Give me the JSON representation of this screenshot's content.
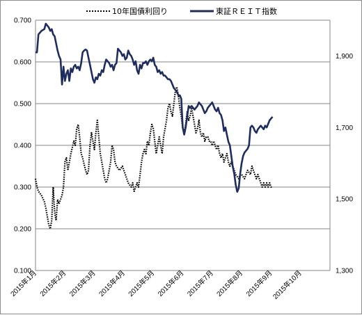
{
  "chart_data": {
    "type": "line",
    "title": "",
    "legend": {
      "placement": "top",
      "entries": [
        "10年国債利回り",
        "東証ＲＥＩＴ指数"
      ]
    },
    "y_left": {
      "range": [
        0.1,
        0.7
      ],
      "ticks": [
        "0.700",
        "0.600",
        "0.500",
        "0.400",
        "0.300",
        "0.200",
        "0.100"
      ]
    },
    "y_right": {
      "range": [
        1300,
        2000
      ],
      "ticks": [
        "1,900",
        "1,700",
        "1,500",
        "1,300"
      ]
    },
    "x_axis": {
      "ticks": [
        "2015年1月",
        "2015年2月",
        "2015年3月",
        "2015年4月",
        "2015年5月",
        "2015年6月",
        "2015年7月",
        "2015年8月",
        "2015年9月",
        "2015年10月"
      ],
      "range": [
        0,
        10
      ]
    },
    "gridlines": "horizontal",
    "series": [
      {
        "name": "10年国債利回り",
        "axis": "left",
        "style": "dotted",
        "color": "#000000",
        "points": [
          [
            0.0,
            0.32
          ],
          [
            0.05,
            0.3
          ],
          [
            0.1,
            0.29
          ],
          [
            0.2,
            0.28
          ],
          [
            0.3,
            0.265
          ],
          [
            0.35,
            0.25
          ],
          [
            0.4,
            0.23
          ],
          [
            0.45,
            0.21
          ],
          [
            0.5,
            0.2
          ],
          [
            0.55,
            0.22
          ],
          [
            0.6,
            0.3
          ],
          [
            0.65,
            0.24
          ],
          [
            0.7,
            0.22
          ],
          [
            0.75,
            0.27
          ],
          [
            0.8,
            0.26
          ],
          [
            0.9,
            0.28
          ],
          [
            0.95,
            0.3
          ],
          [
            1.0,
            0.36
          ],
          [
            1.05,
            0.37
          ],
          [
            1.1,
            0.34
          ],
          [
            1.2,
            0.38
          ],
          [
            1.3,
            0.41
          ],
          [
            1.35,
            0.4
          ],
          [
            1.4,
            0.44
          ],
          [
            1.45,
            0.45
          ],
          [
            1.5,
            0.42
          ],
          [
            1.55,
            0.38
          ],
          [
            1.6,
            0.37
          ],
          [
            1.7,
            0.34
          ],
          [
            1.75,
            0.33
          ],
          [
            1.8,
            0.34
          ],
          [
            1.85,
            0.4
          ],
          [
            1.9,
            0.43
          ],
          [
            1.95,
            0.41
          ],
          [
            2.0,
            0.39
          ],
          [
            2.05,
            0.43
          ],
          [
            2.1,
            0.46
          ],
          [
            2.15,
            0.42
          ],
          [
            2.2,
            0.38
          ],
          [
            2.25,
            0.36
          ],
          [
            2.3,
            0.34
          ],
          [
            2.35,
            0.32
          ],
          [
            2.4,
            0.31
          ],
          [
            2.45,
            0.32
          ],
          [
            2.5,
            0.34
          ],
          [
            2.55,
            0.36
          ],
          [
            2.6,
            0.4
          ],
          [
            2.65,
            0.39
          ],
          [
            2.7,
            0.36
          ],
          [
            2.75,
            0.35
          ],
          [
            2.85,
            0.34
          ],
          [
            2.95,
            0.35
          ],
          [
            3.05,
            0.33
          ],
          [
            3.15,
            0.31
          ],
          [
            3.25,
            0.3
          ],
          [
            3.3,
            0.31
          ],
          [
            3.35,
            0.29
          ],
          [
            3.4,
            0.3
          ],
          [
            3.45,
            0.31
          ],
          [
            3.5,
            0.3
          ],
          [
            3.55,
            0.33
          ],
          [
            3.6,
            0.36
          ],
          [
            3.65,
            0.38
          ],
          [
            3.7,
            0.39
          ],
          [
            3.75,
            0.38
          ],
          [
            3.8,
            0.41
          ],
          [
            3.85,
            0.4
          ],
          [
            3.9,
            0.43
          ],
          [
            3.95,
            0.45
          ],
          [
            4.0,
            0.44
          ],
          [
            4.05,
            0.41
          ],
          [
            4.1,
            0.38
          ],
          [
            4.15,
            0.4
          ],
          [
            4.2,
            0.42
          ],
          [
            4.25,
            0.4
          ],
          [
            4.3,
            0.38
          ],
          [
            4.35,
            0.42
          ],
          [
            4.4,
            0.44
          ],
          [
            4.45,
            0.46
          ],
          [
            4.5,
            0.49
          ],
          [
            4.55,
            0.5
          ],
          [
            4.6,
            0.48
          ],
          [
            4.65,
            0.47
          ],
          [
            4.7,
            0.5
          ],
          [
            4.75,
            0.53
          ],
          [
            4.8,
            0.54
          ],
          [
            4.85,
            0.52
          ],
          [
            4.9,
            0.49
          ],
          [
            4.95,
            0.47
          ],
          [
            5.0,
            0.44
          ],
          [
            5.05,
            0.43
          ],
          [
            5.1,
            0.45
          ],
          [
            5.15,
            0.48
          ],
          [
            5.2,
            0.46
          ],
          [
            5.25,
            0.47
          ],
          [
            5.3,
            0.49
          ],
          [
            5.35,
            0.47
          ],
          [
            5.4,
            0.45
          ],
          [
            5.45,
            0.43
          ],
          [
            5.5,
            0.44
          ],
          [
            5.55,
            0.46
          ],
          [
            5.6,
            0.43
          ],
          [
            5.65,
            0.42
          ],
          [
            5.7,
            0.43
          ],
          [
            5.75,
            0.41
          ],
          [
            5.8,
            0.42
          ],
          [
            5.85,
            0.42
          ],
          [
            5.9,
            0.41
          ],
          [
            5.95,
            0.41
          ],
          [
            6.0,
            0.4
          ],
          [
            6.05,
            0.41
          ],
          [
            6.1,
            0.4
          ],
          [
            6.15,
            0.39
          ],
          [
            6.2,
            0.4
          ],
          [
            6.25,
            0.38
          ],
          [
            6.3,
            0.37
          ],
          [
            6.35,
            0.38
          ],
          [
            6.4,
            0.36
          ],
          [
            6.45,
            0.37
          ],
          [
            6.5,
            0.38
          ],
          [
            6.55,
            0.36
          ],
          [
            6.6,
            0.35
          ],
          [
            6.65,
            0.36
          ],
          [
            6.7,
            0.35
          ],
          [
            6.75,
            0.34
          ],
          [
            6.8,
            0.33
          ],
          [
            6.9,
            0.32
          ],
          [
            6.95,
            0.33
          ],
          [
            7.0,
            0.33
          ],
          [
            7.1,
            0.32
          ],
          [
            7.2,
            0.34
          ],
          [
            7.3,
            0.33
          ],
          [
            7.35,
            0.35
          ],
          [
            7.4,
            0.34
          ],
          [
            7.45,
            0.33
          ],
          [
            7.5,
            0.32
          ],
          [
            7.55,
            0.33
          ],
          [
            7.6,
            0.32
          ],
          [
            7.65,
            0.31
          ],
          [
            7.7,
            0.3
          ],
          [
            7.75,
            0.31
          ],
          [
            7.8,
            0.3
          ],
          [
            7.85,
            0.31
          ],
          [
            7.9,
            0.3
          ],
          [
            7.95,
            0.31
          ],
          [
            8.0,
            0.3
          ],
          [
            8.05,
            0.3
          ]
        ]
      },
      {
        "name": "東証ＲＥＩＴ指数",
        "axis": "right",
        "style": "solid",
        "color": "#1f2d5e",
        "points": [
          [
            0.0,
            1910
          ],
          [
            0.05,
            1910
          ],
          [
            0.1,
            1960
          ],
          [
            0.2,
            1970
          ],
          [
            0.3,
            1975
          ],
          [
            0.35,
            1990
          ],
          [
            0.4,
            1985
          ],
          [
            0.45,
            1980
          ],
          [
            0.5,
            1970
          ],
          [
            0.55,
            1975
          ],
          [
            0.6,
            1960
          ],
          [
            0.65,
            1955
          ],
          [
            0.7,
            1935
          ],
          [
            0.75,
            1915
          ],
          [
            0.8,
            1900
          ],
          [
            0.85,
            1890
          ],
          [
            0.9,
            1820
          ],
          [
            0.95,
            1870
          ],
          [
            1.0,
            1830
          ],
          [
            1.05,
            1850
          ],
          [
            1.1,
            1860
          ],
          [
            1.15,
            1830
          ],
          [
            1.2,
            1865
          ],
          [
            1.25,
            1855
          ],
          [
            1.3,
            1870
          ],
          [
            1.35,
            1875
          ],
          [
            1.4,
            1865
          ],
          [
            1.45,
            1870
          ],
          [
            1.5,
            1860
          ],
          [
            1.55,
            1880
          ],
          [
            1.6,
            1910
          ],
          [
            1.65,
            1915
          ],
          [
            1.7,
            1918
          ],
          [
            1.75,
            1915
          ],
          [
            1.8,
            1895
          ],
          [
            1.85,
            1875
          ],
          [
            1.9,
            1855
          ],
          [
            1.95,
            1835
          ],
          [
            2.0,
            1825
          ],
          [
            2.05,
            1840
          ],
          [
            2.1,
            1835
          ],
          [
            2.15,
            1850
          ],
          [
            2.2,
            1845
          ],
          [
            2.25,
            1860
          ],
          [
            2.3,
            1855
          ],
          [
            2.35,
            1875
          ],
          [
            2.4,
            1890
          ],
          [
            2.45,
            1885
          ],
          [
            2.5,
            1880
          ],
          [
            2.55,
            1870
          ],
          [
            2.6,
            1875
          ],
          [
            2.65,
            1860
          ],
          [
            2.7,
            1875
          ],
          [
            2.75,
            1880
          ],
          [
            2.8,
            1920
          ],
          [
            2.85,
            1915
          ],
          [
            2.9,
            1910
          ],
          [
            2.95,
            1900
          ],
          [
            3.0,
            1905
          ],
          [
            3.05,
            1890
          ],
          [
            3.1,
            1895
          ],
          [
            3.15,
            1915
          ],
          [
            3.2,
            1905
          ],
          [
            3.25,
            1900
          ],
          [
            3.3,
            1890
          ],
          [
            3.35,
            1875
          ],
          [
            3.4,
            1885
          ],
          [
            3.45,
            1860
          ],
          [
            3.5,
            1850
          ],
          [
            3.55,
            1875
          ],
          [
            3.6,
            1865
          ],
          [
            3.65,
            1880
          ],
          [
            3.7,
            1880
          ],
          [
            3.75,
            1885
          ],
          [
            3.8,
            1875
          ],
          [
            3.85,
            1885
          ],
          [
            3.9,
            1890
          ],
          [
            3.95,
            1885
          ],
          [
            4.0,
            1895
          ],
          [
            4.05,
            1875
          ],
          [
            4.1,
            1870
          ],
          [
            4.15,
            1855
          ],
          [
            4.2,
            1860
          ],
          [
            4.25,
            1850
          ],
          [
            4.3,
            1855
          ],
          [
            4.35,
            1845
          ],
          [
            4.4,
            1845
          ],
          [
            4.45,
            1840
          ],
          [
            4.5,
            1835
          ],
          [
            4.55,
            1835
          ],
          [
            4.6,
            1830
          ],
          [
            4.65,
            1820
          ],
          [
            4.7,
            1810
          ],
          [
            4.75,
            1805
          ],
          [
            4.8,
            1800
          ],
          [
            4.85,
            1790
          ],
          [
            4.9,
            1790
          ],
          [
            4.95,
            1780
          ],
          [
            5.0,
            1700
          ],
          [
            5.05,
            1680
          ],
          [
            5.1,
            1700
          ],
          [
            5.15,
            1730
          ],
          [
            5.2,
            1760
          ],
          [
            5.25,
            1755
          ],
          [
            5.3,
            1760
          ],
          [
            5.35,
            1755
          ],
          [
            5.4,
            1750
          ],
          [
            5.45,
            1755
          ],
          [
            5.5,
            1760
          ],
          [
            5.55,
            1770
          ],
          [
            5.6,
            1765
          ],
          [
            5.65,
            1760
          ],
          [
            5.7,
            1750
          ],
          [
            5.75,
            1740
          ],
          [
            5.8,
            1745
          ],
          [
            5.85,
            1755
          ],
          [
            5.9,
            1760
          ],
          [
            5.95,
            1765
          ],
          [
            6.0,
            1770
          ],
          [
            6.05,
            1760
          ],
          [
            6.1,
            1750
          ],
          [
            6.15,
            1745
          ],
          [
            6.2,
            1755
          ],
          [
            6.25,
            1740
          ],
          [
            6.3,
            1735
          ],
          [
            6.35,
            1720
          ],
          [
            6.4,
            1690
          ],
          [
            6.45,
            1700
          ],
          [
            6.5,
            1680
          ],
          [
            6.55,
            1660
          ],
          [
            6.6,
            1650
          ],
          [
            6.65,
            1620
          ],
          [
            6.7,
            1590
          ],
          [
            6.75,
            1570
          ],
          [
            6.8,
            1540
          ],
          [
            6.85,
            1520
          ],
          [
            6.9,
            1530
          ],
          [
            6.95,
            1570
          ],
          [
            7.0,
            1600
          ],
          [
            7.05,
            1620
          ],
          [
            7.1,
            1630
          ],
          [
            7.15,
            1635
          ],
          [
            7.2,
            1640
          ],
          [
            7.25,
            1650
          ],
          [
            7.3,
            1700
          ],
          [
            7.35,
            1705
          ],
          [
            7.4,
            1700
          ],
          [
            7.45,
            1690
          ],
          [
            7.5,
            1685
          ],
          [
            7.55,
            1695
          ],
          [
            7.6,
            1700
          ],
          [
            7.65,
            1705
          ],
          [
            7.7,
            1700
          ],
          [
            7.75,
            1695
          ],
          [
            7.8,
            1705
          ],
          [
            7.85,
            1700
          ],
          [
            7.9,
            1710
          ],
          [
            7.95,
            1720
          ],
          [
            8.0,
            1725
          ],
          [
            8.05,
            1730
          ]
        ]
      }
    ]
  }
}
